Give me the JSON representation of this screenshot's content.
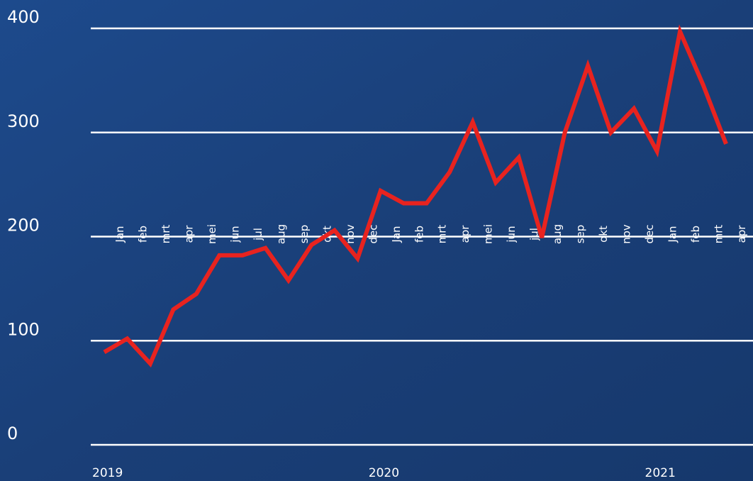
{
  "chart_data": {
    "type": "line",
    "categories": [
      "Jan",
      "feb",
      "mrt",
      "apr",
      "mei",
      "jun",
      "jul",
      "aug",
      "sep",
      "okt",
      "nov",
      "dec",
      "Jan",
      "feb",
      "mrt",
      "apr",
      "mei",
      "jun",
      "jul",
      "aug",
      "sep",
      "okt",
      "nov",
      "dec",
      "Jan",
      "feb",
      "mrt",
      "apr"
    ],
    "year_groups": [
      {
        "label": "2019",
        "start": 0
      },
      {
        "label": "2020",
        "start": 12
      },
      {
        "label": "2021",
        "start": 24
      }
    ],
    "series": [
      {
        "color": "#e8231f",
        "values": [
          89,
          102,
          78,
          130,
          145,
          182,
          182,
          189,
          158,
          192,
          206,
          179,
          244,
          232,
          232,
          262,
          310,
          252,
          276,
          199,
          300,
          364,
          300,
          323,
          282,
          397,
          346,
          289
        ]
      }
    ],
    "ylim": [
      0,
      400
    ],
    "yticks": [
      0,
      100,
      200,
      300,
      400
    ],
    "grid": true
  }
}
